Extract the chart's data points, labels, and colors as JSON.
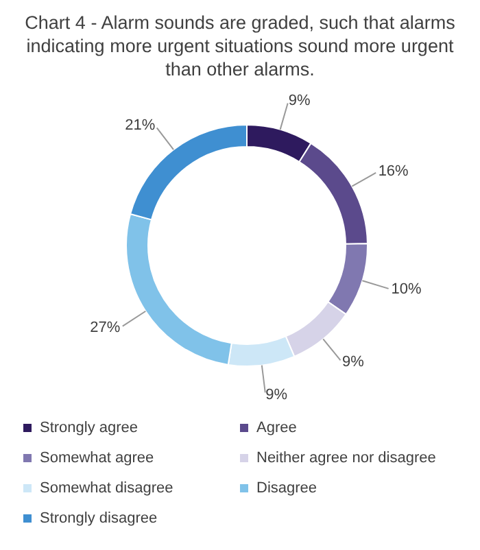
{
  "chart_data": {
    "type": "donut",
    "title": "Chart 4 - Alarm sounds are graded, such that alarms indicating more urgent situations sound more urgent than other alarms.",
    "categories": [
      "Strongly agree",
      "Agree",
      "Somewhat agree",
      "Neither agree nor disagree",
      "Somewhat disagree",
      "Disagree",
      "Strongly disagree"
    ],
    "values": [
      9,
      16,
      10,
      9,
      9,
      27,
      21
    ],
    "colors": [
      "#2e1a5e",
      "#5b4a8c",
      "#8078b0",
      "#d6d3e8",
      "#cde7f7",
      "#80c2e9",
      "#3f8fd1"
    ],
    "value_labels": [
      "9%",
      "16%",
      "10%",
      "9%",
      "9%",
      "27%",
      "21%"
    ],
    "legend": "bottom"
  }
}
